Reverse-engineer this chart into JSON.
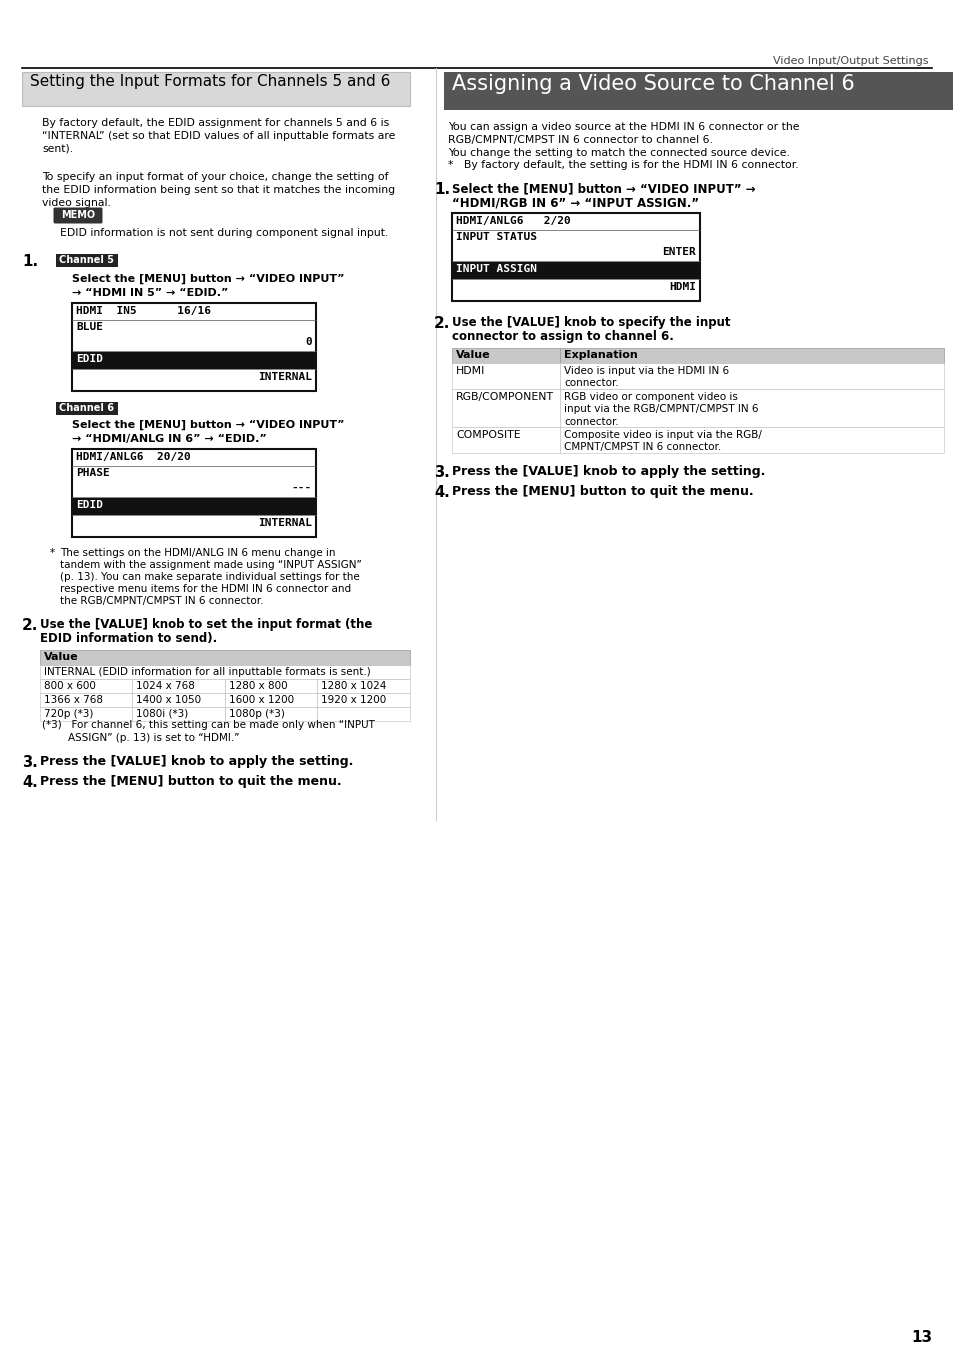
{
  "page_title": "Video Input/Output Settings",
  "page_number": "13",
  "left_section_title": "Setting the Input Formats for Channels 5 and 6",
  "right_section_title": "Assigning a Video Source to Channel 6",
  "left_body_text_1": "By factory default, the EDID assignment for channels 5 and 6 is\n“INTERNAL” (set so that EDID values of all inputtable formats are\nsent).",
  "left_body_text_2": "To specify an input format of your choice, change the setting of\nthe EDID information being sent so that it matches the incoming\nvideo signal.",
  "memo_text": "EDID information is not sent during component signal input.",
  "step1_label": "Channel 5",
  "step1_text_line1": "Select the [MENU] button → “VIDEO INPUT”",
  "step1_text_line2": "→ “HDMI IN 5” → “EDID.”",
  "step1b_label": "Channel 6",
  "step1b_text_line1": "Select the [MENU] button → “VIDEO INPUT”",
  "step1b_text_line2": "→ “HDMI/ANLG IN 6” → “EDID.”",
  "footnote_lines": [
    "The settings on the HDMI/ANLG IN 6 menu change in",
    "tandem with the assignment made using “INPUT ASSIGN”",
    "(p. 13). You can make separate individual settings for the",
    "respective menu items for the HDMI IN 6 connector and",
    "the RGB/CMPNT/CMPST IN 6 connector."
  ],
  "step2_text_line1": "Use the [VALUE] knob to set the input format (the",
  "step2_text_line2": "EDID information to send).",
  "table_header": "Value",
  "table_row0": "INTERNAL (EDID information for all inputtable formats is sent.)",
  "table_row1": [
    "800 x 600",
    "1024 x 768",
    "1280 x 800",
    "1280 x 1024"
  ],
  "table_row2": [
    "1366 x 768",
    "1400 x 1050",
    "1600 x 1200",
    "1920 x 1200"
  ],
  "table_row3": [
    "720p (*3)",
    "1080i (*3)",
    "1080p (*3)",
    ""
  ],
  "footnote3_line1": "(*3)   For channel 6, this setting can be made only when “INPUT",
  "footnote3_line2": "        ASSIGN” (p. 13) is set to “HDMI.”",
  "step3_text": "Press the [VALUE] knob to apply the setting.",
  "step4_text": "Press the [MENU] button to quit the menu.",
  "right_body_text_1": "You can assign a video source at the HDMI IN 6 connector or the",
  "right_body_text_2": "RGB/CMPNT/CMPST IN 6 connector to channel 6.",
  "right_body_text_3": "You change the setting to match the connected source device.",
  "right_body_text_4": "*   By factory default, the setting is for the HDMI IN 6 connector.",
  "right_step1_text_line1": "Select the [MENU] button → “VIDEO INPUT” →",
  "right_step1_text_line2": "“HDMI/RGB IN 6” → “INPUT ASSIGN.”",
  "right_step2_text_line1": "Use the [VALUE] knob to specify the input",
  "right_step2_text_line2": "connector to assign to channel 6.",
  "right_table_header_col1": "Value",
  "right_table_header_col2": "Explanation",
  "right_table_rows": [
    [
      "HDMI",
      "Video is input via the HDMI IN 6\nconnector."
    ],
    [
      "RGB/COMPONENT",
      "RGB video or component video is\ninput via the RGB/CMPNT/CMPST IN 6\nconnector."
    ],
    [
      "COMPOSITE",
      "Composite video is input via the RGB/\nCMPNT/CMPST IN 6 connector."
    ]
  ],
  "right_step3_text": "Press the [VALUE] knob to apply the setting.",
  "right_step4_text": "Press the [MENU] button to quit the menu."
}
